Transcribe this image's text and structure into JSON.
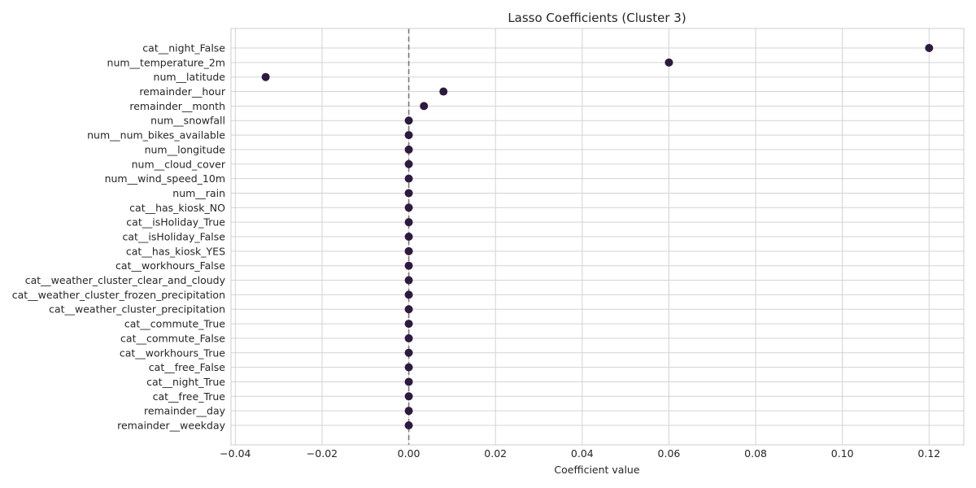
{
  "chart_data": {
    "type": "scatter",
    "title": "Lasso Coefficients (Cluster 3)",
    "xlabel": "Coefficient value",
    "ylabel": "",
    "xlim": [
      -0.041,
      0.128
    ],
    "x_ticks": [
      -0.04,
      -0.02,
      0.0,
      0.02,
      0.04,
      0.06,
      0.08,
      0.1,
      0.12
    ],
    "x_tick_labels": [
      "−0.04",
      "−0.02",
      "0.00",
      "0.02",
      "0.04",
      "0.06",
      "0.08",
      "0.10",
      "0.12"
    ],
    "grid": true,
    "reference_line": 0.0,
    "marker_color": "#2e1a3f",
    "categories": [
      "cat__night_False",
      "num__temperature_2m",
      "num__latitude",
      "remainder__hour",
      "remainder__month",
      "num__snowfall",
      "num__num_bikes_available",
      "num__longitude",
      "num__cloud_cover",
      "num__wind_speed_10m",
      "num__rain",
      "cat__has_kiosk_NO",
      "cat__isHoliday_True",
      "cat__isHoliday_False",
      "cat__has_kiosk_YES",
      "cat__workhours_False",
      "cat__weather_cluster_clear_and_cloudy",
      "cat__weather_cluster_frozen_precipitation",
      "cat__weather_cluster_precipitation",
      "cat__commute_True",
      "cat__commute_False",
      "cat__workhours_True",
      "cat__free_False",
      "cat__night_True",
      "cat__free_True",
      "remainder__day",
      "remainder__weekday"
    ],
    "values": [
      0.12,
      0.06,
      -0.033,
      0.008,
      0.0035,
      0,
      0,
      0,
      0,
      0,
      0,
      0,
      0,
      0,
      0,
      0,
      0,
      0,
      0,
      0,
      0,
      0,
      0,
      0,
      0,
      0,
      0
    ]
  }
}
